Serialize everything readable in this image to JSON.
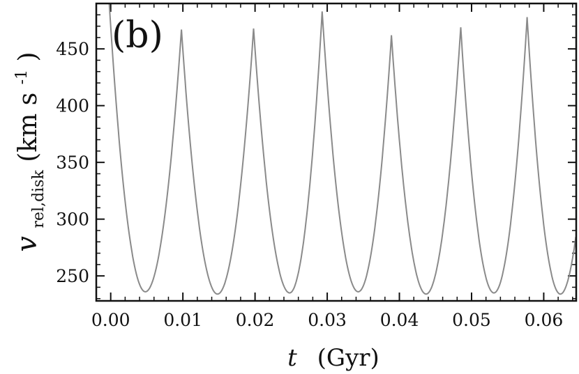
{
  "chart_data": {
    "type": "line",
    "panel_label": "(b)",
    "xlabel": {
      "var": "t",
      "unit": "(Gyr)"
    },
    "ylabel": {
      "var": "v",
      "sub": "rel,disk",
      "unit_pre": "(km s",
      "sup": "-1",
      "unit_post": ")"
    },
    "xlim": [
      -0.002,
      0.0645
    ],
    "ylim": [
      228,
      490
    ],
    "xticks": [
      "0.00",
      "0.01",
      "0.02",
      "0.03",
      "0.04",
      "0.05",
      "0.06"
    ],
    "yticks": [
      "250",
      "300",
      "350",
      "400",
      "450"
    ],
    "grid": false,
    "line_color": "#8a8a8a",
    "minima": [
      [
        0.0048,
        236
      ],
      [
        0.0148,
        234
      ],
      [
        0.0248,
        235
      ],
      [
        0.0343,
        236
      ],
      [
        0.0437,
        234
      ],
      [
        0.0531,
        235
      ],
      [
        0.0623,
        234
      ]
    ],
    "peaks": [
      [
        -0.0002,
        490
      ],
      [
        0.0098,
        467
      ],
      [
        0.0198,
        468
      ],
      [
        0.0293,
        483
      ],
      [
        0.0389,
        462
      ],
      [
        0.0485,
        469
      ],
      [
        0.0577,
        478
      ]
    ],
    "end_point": [
      0.0645,
      262
    ]
  }
}
